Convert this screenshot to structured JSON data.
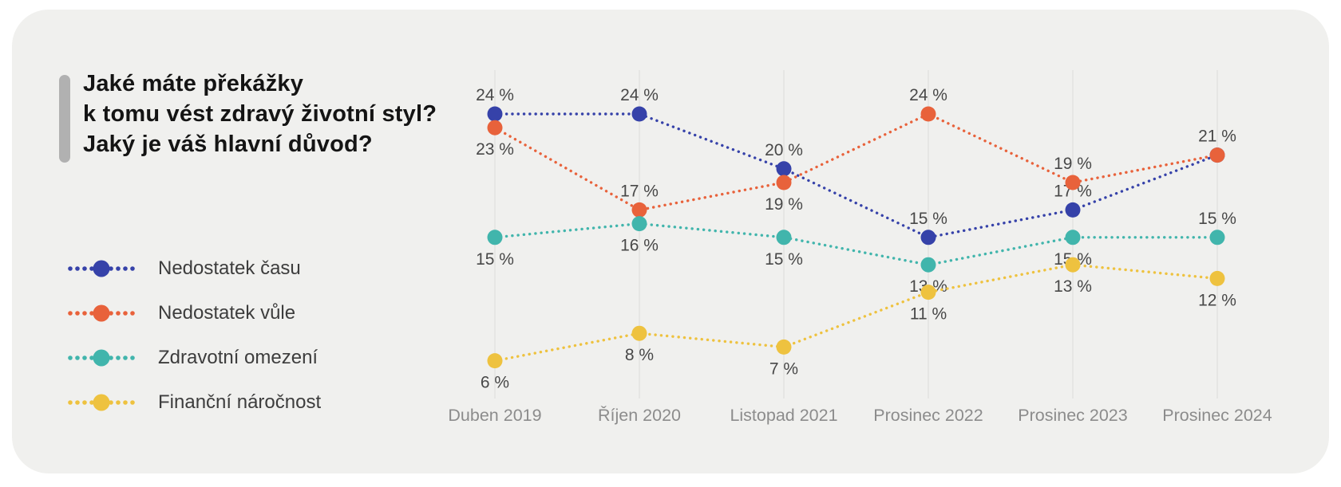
{
  "card": {
    "background": "#f0f0ee",
    "accent_bar_color": "#b1b1b1"
  },
  "title": {
    "lines": [
      "Jaké máte překážky",
      "k tomu vést zdravý životní styl?",
      "Jaký je váš hlavní důvod?"
    ]
  },
  "chart_data": {
    "type": "line",
    "line_style": "dotted",
    "title": "Jaké máte překážky k tomu vést zdravý životní styl? Jaký je váš hlavní důvod?",
    "categories": [
      "Duben 2019",
      "Říjen 2020",
      "Listopad 2021",
      "Prosinec 2022",
      "Prosinec 2023",
      "Prosinec 2024"
    ],
    "value_suffix": " %",
    "ylim": [
      0,
      30
    ],
    "grid": "vertical-gridlines-only",
    "legend_position": "left",
    "series": [
      {
        "name": "Nedostatek času",
        "color": "#3642a9",
        "values": [
          24,
          24,
          20,
          15,
          17,
          21
        ],
        "point_labels": [
          "24 %",
          "24 %",
          "20 %",
          "15 %",
          "17 %",
          ""
        ],
        "label_positions": [
          "above",
          "above",
          "above",
          "above",
          "above",
          "above"
        ]
      },
      {
        "name": "Nedostatek vůle",
        "color": "#e8623b",
        "values": [
          23,
          17,
          19,
          24,
          19,
          21
        ],
        "point_labels": [
          "23 %",
          "17 %",
          "19 %",
          "24 %",
          "19 %",
          "21 %"
        ],
        "label_positions": [
          "below",
          "above",
          "below",
          "above",
          "above",
          "above"
        ]
      },
      {
        "name": "Zdravotní omezení",
        "color": "#41b5ac",
        "values": [
          15,
          16,
          15,
          13,
          15,
          15
        ],
        "point_labels": [
          "15 %",
          "16 %",
          "15 %",
          "13 %",
          "15 %",
          "15 %"
        ],
        "label_positions": [
          "below",
          "below",
          "below",
          "below",
          "below",
          "above"
        ]
      },
      {
        "name": "Finanční náročnost",
        "color": "#eec23f",
        "values": [
          6,
          8,
          7,
          11,
          13,
          12
        ],
        "point_labels": [
          "6 %",
          "8 %",
          "7 %",
          "11 %",
          "13 %",
          "12 %"
        ],
        "label_positions": [
          "below",
          "below",
          "below",
          "below",
          "below",
          "below"
        ]
      }
    ],
    "colors": {
      "point_label": "#484848",
      "axis_label": "#8c8c8c",
      "gridline": "#e3e3e1",
      "title_text": "#141414"
    }
  }
}
